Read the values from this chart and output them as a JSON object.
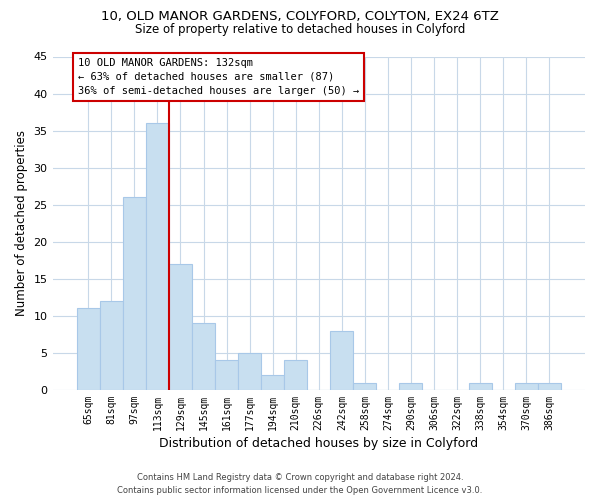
{
  "title": "10, OLD MANOR GARDENS, COLYFORD, COLYTON, EX24 6TZ",
  "subtitle": "Size of property relative to detached houses in Colyford",
  "xlabel": "Distribution of detached houses by size in Colyford",
  "ylabel": "Number of detached properties",
  "bin_labels": [
    "65sqm",
    "81sqm",
    "97sqm",
    "113sqm",
    "129sqm",
    "145sqm",
    "161sqm",
    "177sqm",
    "194sqm",
    "210sqm",
    "226sqm",
    "242sqm",
    "258sqm",
    "274sqm",
    "290sqm",
    "306sqm",
    "322sqm",
    "338sqm",
    "354sqm",
    "370sqm",
    "386sqm"
  ],
  "bar_values": [
    11,
    12,
    26,
    36,
    17,
    9,
    4,
    5,
    2,
    4,
    0,
    8,
    1,
    0,
    1,
    0,
    0,
    1,
    0,
    1,
    1
  ],
  "bar_color": "#c8dff0",
  "bar_edge_color": "#a8c8e8",
  "vline_color": "#cc0000",
  "ylim": [
    0,
    45
  ],
  "yticks": [
    0,
    5,
    10,
    15,
    20,
    25,
    30,
    35,
    40,
    45
  ],
  "annotation_line1": "10 OLD MANOR GARDENS: 132sqm",
  "annotation_line2": "← 63% of detached houses are smaller (87)",
  "annotation_line3": "36% of semi-detached houses are larger (50) →",
  "footer_line1": "Contains HM Land Registry data © Crown copyright and database right 2024.",
  "footer_line2": "Contains public sector information licensed under the Open Government Licence v3.0.",
  "bg_color": "#ffffff",
  "grid_color": "#c8d8e8"
}
